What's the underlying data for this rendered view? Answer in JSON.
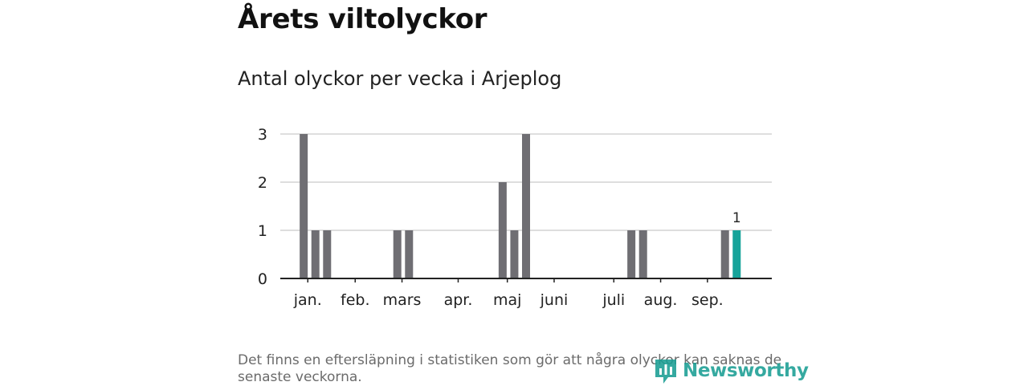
{
  "header": {
    "title": "Årets viltolyckor",
    "subtitle": "Antal olyckor per vecka i Arjeplog"
  },
  "chart_data": {
    "type": "bar",
    "title": "Antal olyckor per vecka i Arjeplog",
    "xlabel": "",
    "ylabel": "",
    "x_range_weeks": [
      0,
      42
    ],
    "ylim": [
      0,
      3
    ],
    "yticks": [
      0,
      1,
      2,
      3
    ],
    "grid": true,
    "month_ticks": [
      {
        "label": "jan.",
        "week": 2.35
      },
      {
        "label": "feb.",
        "week": 6.4
      },
      {
        "label": "mars",
        "week": 10.4
      },
      {
        "label": "apr.",
        "week": 15.2
      },
      {
        "label": "maj",
        "week": 19.4
      },
      {
        "label": "juni",
        "week": 23.4
      },
      {
        "label": "juli",
        "week": 28.5
      },
      {
        "label": "aug.",
        "week": 32.5
      },
      {
        "label": "sep.",
        "week": 36.5
      }
    ],
    "bars": [
      {
        "week": 2,
        "value": 3
      },
      {
        "week": 3,
        "value": 1
      },
      {
        "week": 4,
        "value": 1
      },
      {
        "week": 10,
        "value": 1
      },
      {
        "week": 11,
        "value": 1
      },
      {
        "week": 19,
        "value": 2
      },
      {
        "week": 20,
        "value": 1
      },
      {
        "week": 21,
        "value": 3
      },
      {
        "week": 30,
        "value": 1
      },
      {
        "week": 31,
        "value": 1
      },
      {
        "week": 38,
        "value": 1
      },
      {
        "week": 39,
        "value": 1,
        "highlight": true,
        "label": "1"
      }
    ]
  },
  "colors": {
    "bar": "#6f6e73",
    "highlight": "#16a39a",
    "grid": "#d4d4d4",
    "axis": "#222222",
    "logo": "#1a9e93"
  },
  "footnote": "Det finns en eftersläpning i statistiken som gör att några olyckor kan saknas de senaste veckorna.",
  "logo": {
    "text": "Newsworthy",
    "icon": "newsworthy-logo-icon"
  }
}
